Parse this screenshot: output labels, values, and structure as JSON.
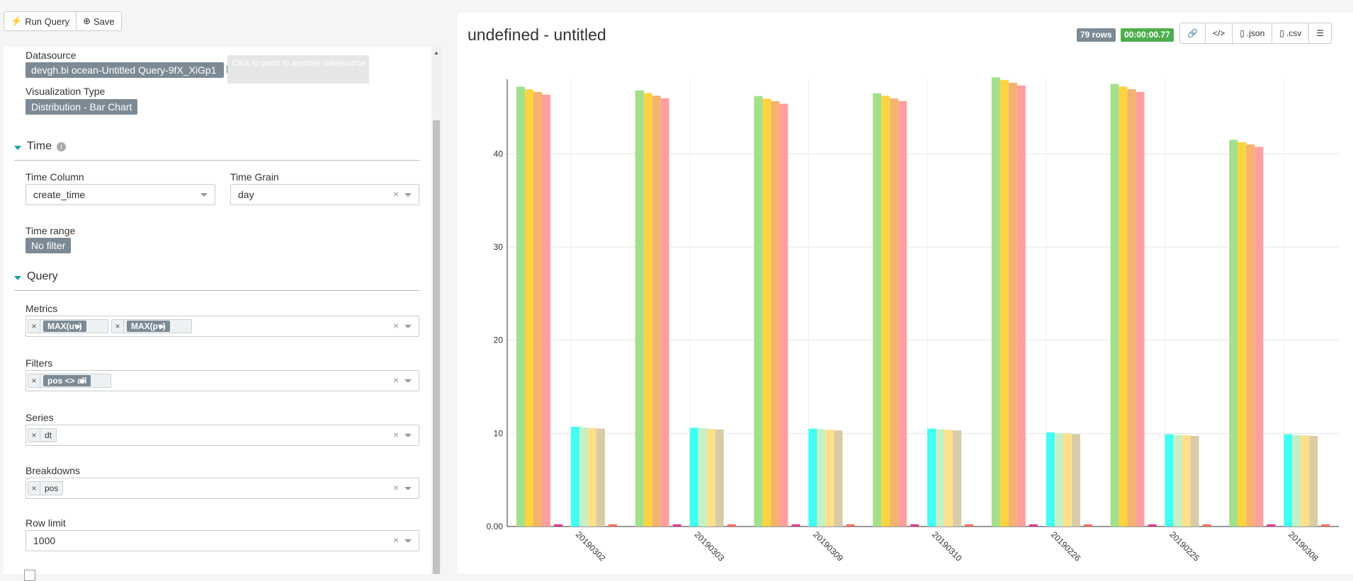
{
  "toolbar": {
    "run_label": "Run Query",
    "save_label": "Save"
  },
  "datasource": {
    "label": "Datasource",
    "value": "devgh.bi ocean-Untitled Query-9fX_XiGp1",
    "hint": "Click to point to another datasource"
  },
  "viz": {
    "label": "Visualization Type",
    "value": "Distribution - Bar Chart"
  },
  "time_section": {
    "title": "Time",
    "time_column_label": "Time Column",
    "time_column_value": "create_time",
    "time_grain_label": "Time Grain",
    "time_grain_value": "day",
    "time_range_label": "Time range",
    "time_range_value": "No filter"
  },
  "query_section": {
    "title": "Query",
    "metrics_label": "Metrics",
    "metrics": [
      "MAX(uv)",
      "MAX(pv)"
    ],
    "filters_label": "Filters",
    "filters": [
      "pos <> all"
    ],
    "series_label": "Series",
    "series": [
      "dt"
    ],
    "breakdowns_label": "Breakdowns",
    "breakdowns": [
      "pos"
    ],
    "row_limit_label": "Row limit",
    "row_limit_value": "1000"
  },
  "chart_header": {
    "title": "undefined - untitled",
    "rows_badge": "79 rows",
    "time_badge": "00:00:00.77",
    "json_label": ".json",
    "csv_label": ".csv",
    "rows_color": "#7b8a94",
    "time_color": "#4cae4c"
  },
  "chart_data": {
    "type": "bar",
    "categories": [
      "20190302",
      "20190303",
      "20190309",
      "20190310",
      "20190226",
      "20190225",
      "20190308"
    ],
    "yticks": [
      "0.00",
      "10",
      "20",
      "30",
      "40"
    ],
    "ylim": [
      0,
      48
    ],
    "groups": [
      {
        "values": [
          47.2,
          46.8,
          46.2,
          46.5,
          48.2,
          47.5,
          41.5
        ],
        "colors": [
          "#a3e08b",
          "#fdd440",
          "#f5b36e",
          "#ff9f9f"
        ]
      },
      {
        "values": [
          10.7,
          10.6,
          10.5,
          10.5,
          10.1,
          9.9,
          9.9
        ],
        "colors": [
          "#40fff3",
          "#c5f0c6",
          "#ffe08a",
          "#d9cba6"
        ]
      }
    ],
    "small_colors": [
      "#e0358e",
      "#ff6a5a"
    ]
  }
}
